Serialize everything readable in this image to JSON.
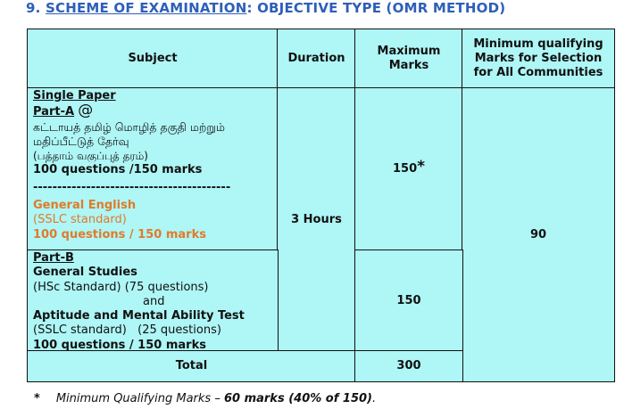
{
  "heading": {
    "number": "9.",
    "underlined": "SCHEME OF EXAMINATION",
    "rest": ": OBJECTIVE TYPE (OMR METHOD)"
  },
  "table": {
    "headers": {
      "subject": "Subject",
      "duration": "Duration",
      "max_marks": "Maximum Marks",
      "min_marks": "Minimum qualifying Marks for Selection for All Communities"
    },
    "single_paper": "Single Paper",
    "part_a": {
      "label": "Part-A",
      "symbol": "@",
      "tamil_line1": "கட்டாயத் தமிழ் மொழித் தகுதி மற்றும்",
      "tamil_line2": "மதிப்பீட்டுத் தேர்வு",
      "tamil_line3": "(பத்தாம் வகுப்புத் தரம்)",
      "questions": "100 questions /150 marks",
      "separator": "-----------------------------------------",
      "alt_subject": "General English",
      "alt_standard": "(SSLC standard)",
      "alt_questions": "100 questions / 150 marks",
      "max_marks": "150",
      "max_marks_mark": "*"
    },
    "part_b": {
      "label": "Part-B",
      "subject1": "General Studies",
      "subject1_detail": "(HSc Standard) (75 questions)",
      "conjunction": "and",
      "subject2": "Aptitude and Mental Ability Test",
      "subject2_detail": "(SSLC standard)   (25 questions)",
      "questions": "100 questions / 150 marks",
      "max_marks": "150"
    },
    "duration": "3 Hours",
    "min_marks": "90",
    "total_label": "Total",
    "total_marks": "300"
  },
  "footnote": {
    "symbol": "*",
    "text": "Minimum Qualifying Marks – ",
    "bold": "60 marks (40% of 150)",
    "end": "."
  },
  "colors": {
    "cell_bg": "#aff6f6",
    "heading": "#2d5fb8",
    "highlight": "#e07b29"
  }
}
